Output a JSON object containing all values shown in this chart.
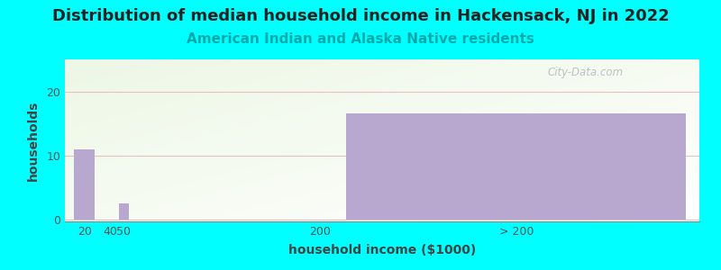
{
  "title": "Distribution of median household income in Hackensack, NJ in 2022",
  "subtitle": "American Indian and Alaska Native residents",
  "xlabel": "household income ($1000)",
  "ylabel": "households",
  "background_color": "#00FFFF",
  "bar_color": "#b8a8d0",
  "bar_edge_color": "#b8a8d0",
  "values": [
    11,
    0,
    2.5,
    0,
    16.5
  ],
  "bar_positions": [
    20,
    40,
    50,
    200,
    350
  ],
  "bar_widths": [
    16,
    8,
    8,
    8,
    260
  ],
  "xlim_left": 5,
  "xlim_right": 490,
  "ylim_bottom": -0.3,
  "ylim_top": 25,
  "yticks": [
    0,
    10,
    20
  ],
  "xtick_labels": [
    "20",
    "40",
    "50",
    "200",
    "> 200"
  ],
  "xtick_positions": [
    20,
    40,
    50,
    200,
    350
  ],
  "watermark": "City-Data.com",
  "title_fontsize": 13,
  "subtitle_fontsize": 11,
  "axis_label_fontsize": 10,
  "tick_fontsize": 9
}
